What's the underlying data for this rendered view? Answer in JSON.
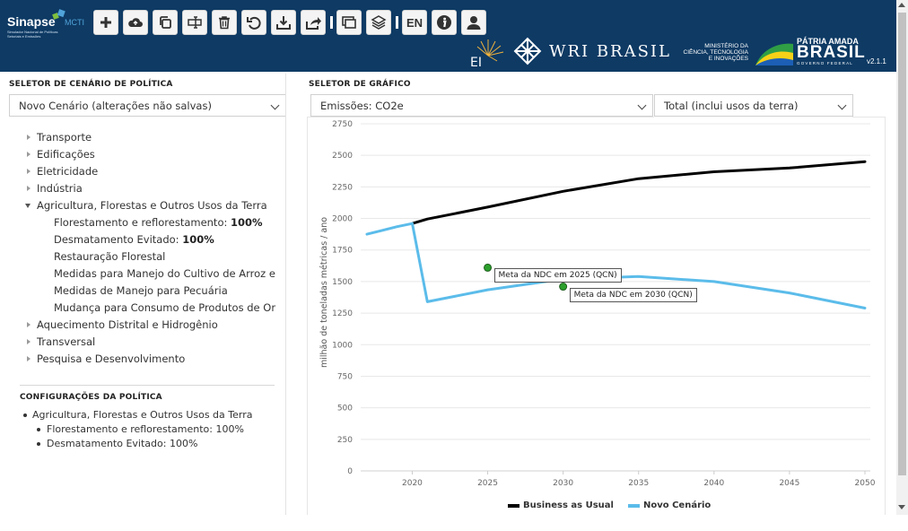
{
  "header": {
    "logo": {
      "name": "Sinapse",
      "tag": "MCTI",
      "subtitle": "Simulador Nacional de Políticas Setoriais e Emissões"
    },
    "toolbar": {
      "lang": "EN"
    },
    "partners": {
      "wri": "WRI BRASIL",
      "ministry": [
        "MINISTÉRIO DA",
        "CIÊNCIA, TECNOLOGIA",
        "E INOVAÇÕES"
      ],
      "gov_top": "PÁTRIA AMADA",
      "gov_main": "BRASIL",
      "gov_bottom": "GOVERNO FEDERAL"
    },
    "version": "v2.1.1"
  },
  "left": {
    "policy_selector_label": "SELETOR DE CENÁRIO DE POLÍTICA",
    "scenario_value": "Novo Cenário (alterações não salvas)",
    "tree": [
      {
        "label": "Transporte",
        "expanded": false
      },
      {
        "label": "Edificações",
        "expanded": false
      },
      {
        "label": "Eletricidade",
        "expanded": false
      },
      {
        "label": "Indústria",
        "expanded": false
      },
      {
        "label": "Agricultura, Florestas e Outros Usos da Terra",
        "expanded": true
      },
      {
        "label": "Aquecimento Distrital e Hidrogênio",
        "expanded": false
      },
      {
        "label": "Transversal",
        "expanded": false
      },
      {
        "label": "Pesquisa e Desenvolvimento",
        "expanded": false
      }
    ],
    "afolu_children": [
      {
        "label": "Florestamento e reflorestamento: ",
        "value": "100%"
      },
      {
        "label": "Desmatamento Evitado: ",
        "value": "100%"
      },
      {
        "label": "Restauração Florestal",
        "value": ""
      },
      {
        "label": "Medidas para Manejo do Cultivo de Arroz e Out",
        "value": ""
      },
      {
        "label": "Medidas de Manejo para Pecuária",
        "value": ""
      },
      {
        "label": "Mudança para Consumo de Produtos de Origen",
        "value": ""
      }
    ],
    "config_label": "CONFIGURAÇÕES DA POLÍTICA",
    "config": {
      "sector": "Agricultura, Florestas e Outros Usos da Terra",
      "items": [
        "Florestamento e reflorestamento: 100%",
        "Desmatamento Evitado: 100%"
      ]
    }
  },
  "right": {
    "chart_selector_label": "SELETOR DE GRÁFICO",
    "metric_value": "Emissões: CO2e",
    "scope_value": "Total (inclui usos da terra)"
  },
  "colors": {
    "header_bg": "#0e3a64",
    "bau": "#000000",
    "novo": "#5bbcea",
    "marker": "#2ca02c"
  },
  "chart_data": {
    "type": "line",
    "ylabel": "milhão de toneladas métricas / ano",
    "xlim": [
      2017,
      2050
    ],
    "ylim": [
      0,
      2750
    ],
    "x_ticks": [
      2020,
      2025,
      2030,
      2035,
      2040,
      2045,
      2050
    ],
    "y_ticks": [
      0,
      250,
      500,
      750,
      1000,
      1250,
      1500,
      1750,
      2000,
      2250,
      2500,
      2750
    ],
    "series": [
      {
        "name": "Business as Usual",
        "color": "#000000",
        "points": [
          [
            2020,
            1960
          ],
          [
            2021,
            1995
          ],
          [
            2025,
            2090
          ],
          [
            2030,
            2215
          ],
          [
            2035,
            2315
          ],
          [
            2040,
            2370
          ],
          [
            2045,
            2400
          ],
          [
            2050,
            2450
          ]
        ]
      },
      {
        "name": "Novo Cenário",
        "color": "#5bbcea",
        "points": [
          [
            2017,
            1875
          ],
          [
            2018,
            1905
          ],
          [
            2019,
            1935
          ],
          [
            2020,
            1960
          ],
          [
            2021,
            1340
          ],
          [
            2025,
            1435
          ],
          [
            2030,
            1520
          ],
          [
            2035,
            1540
          ],
          [
            2040,
            1500
          ],
          [
            2045,
            1410
          ],
          [
            2050,
            1290
          ]
        ]
      }
    ],
    "annotations": [
      {
        "label": "Meta da NDC em 2025 (QCN)",
        "x": 2025,
        "y": 1610
      },
      {
        "label": "Meta da NDC em 2030 (QCN)",
        "x": 2030,
        "y": 1460
      }
    ]
  }
}
